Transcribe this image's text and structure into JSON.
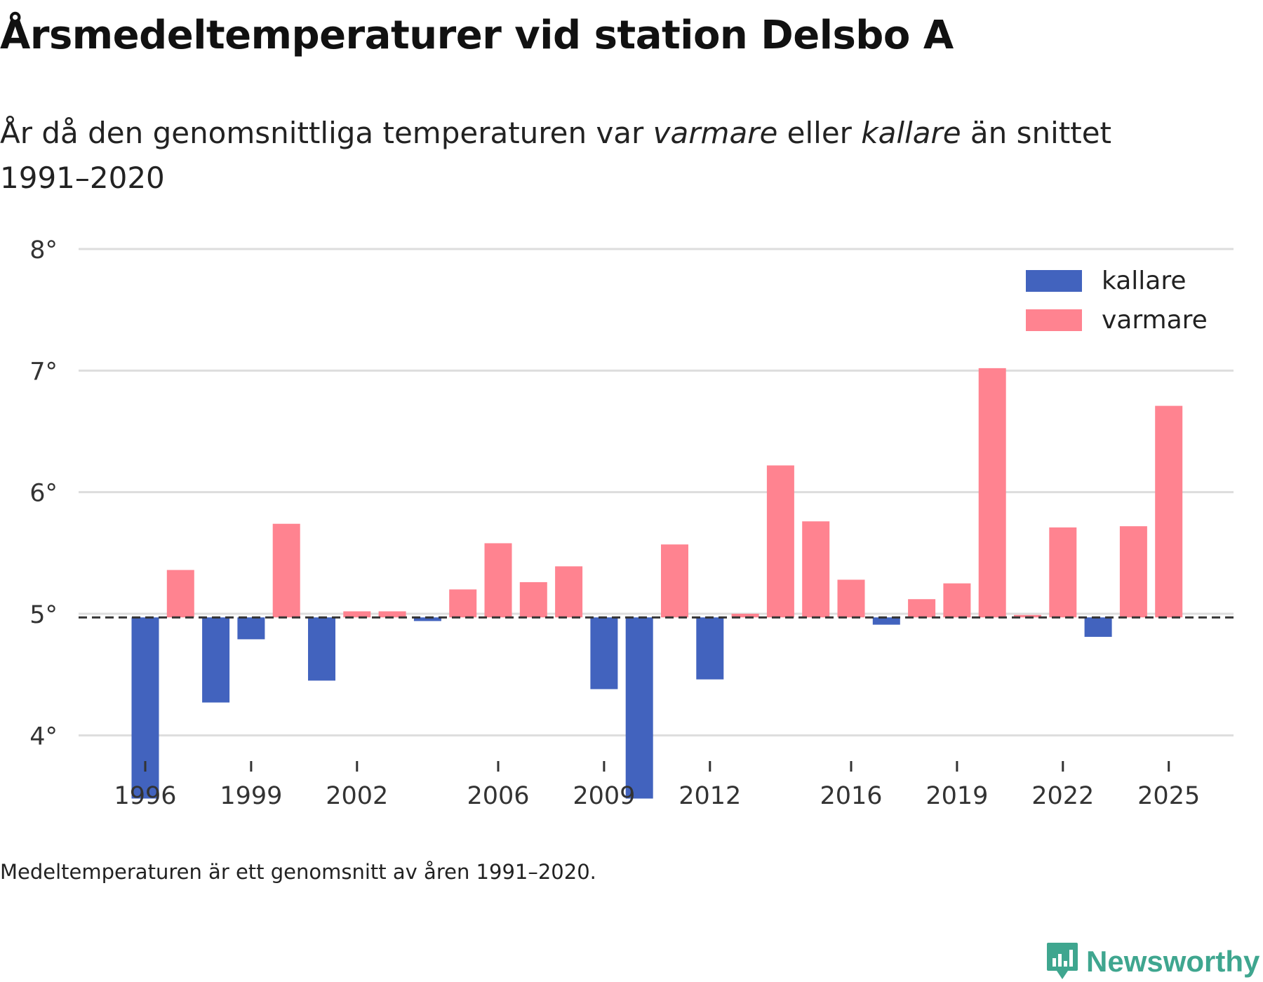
{
  "title": "Årsmedeltemperaturer vid station Delsbo A",
  "subtitle": {
    "part1": "År då den genomsnittliga temperaturen var ",
    "varm": "varmare",
    "part2": " eller ",
    "kall": "kallare",
    "part3": " än snittet 1991–2020"
  },
  "caption": "Medeltemperaturen är ett genomsnitt av åren 1991–2020.",
  "brand": {
    "name": "Newsworthy",
    "icon": "newsworthy-logo-icon"
  },
  "colors": {
    "kallare": "#4263be",
    "varmare": "#ff8390",
    "grid": "#dddddd",
    "baseline": "#333333",
    "brand": "#3fa68f"
  },
  "chart_data": {
    "type": "bar",
    "baseline": 4.97,
    "ylim": [
      3.5,
      8
    ],
    "yticks": [
      4,
      5,
      6,
      7,
      8
    ],
    "ytick_labels": [
      "4°",
      "5°",
      "6°",
      "7°",
      "8°"
    ],
    "xticks": [
      1996,
      1999,
      2002,
      2006,
      2009,
      2012,
      2016,
      2019,
      2022,
      2025
    ],
    "x": [
      1996,
      1997,
      1998,
      1999,
      2000,
      2001,
      2002,
      2003,
      2004,
      2005,
      2006,
      2007,
      2008,
      2009,
      2010,
      2011,
      2012,
      2013,
      2014,
      2015,
      2016,
      2017,
      2018,
      2019,
      2020,
      2021,
      2022,
      2023,
      2024,
      2025
    ],
    "values": [
      3.48,
      5.36,
      4.27,
      4.79,
      5.74,
      4.45,
      5.02,
      5.02,
      4.94,
      5.2,
      5.58,
      5.26,
      5.39,
      4.38,
      3.48,
      5.57,
      4.46,
      5.0,
      6.22,
      5.76,
      5.28,
      4.91,
      5.12,
      5.25,
      7.02,
      4.99,
      5.71,
      4.81,
      5.72,
      6.71
    ],
    "legend": [
      {
        "key": "kallare",
        "label": "kallare"
      },
      {
        "key": "varmare",
        "label": "varmare"
      }
    ],
    "legend_position": "top-right",
    "title": "Årsmedeltemperaturer vid station Delsbo A",
    "xlabel": "",
    "ylabel": ""
  }
}
